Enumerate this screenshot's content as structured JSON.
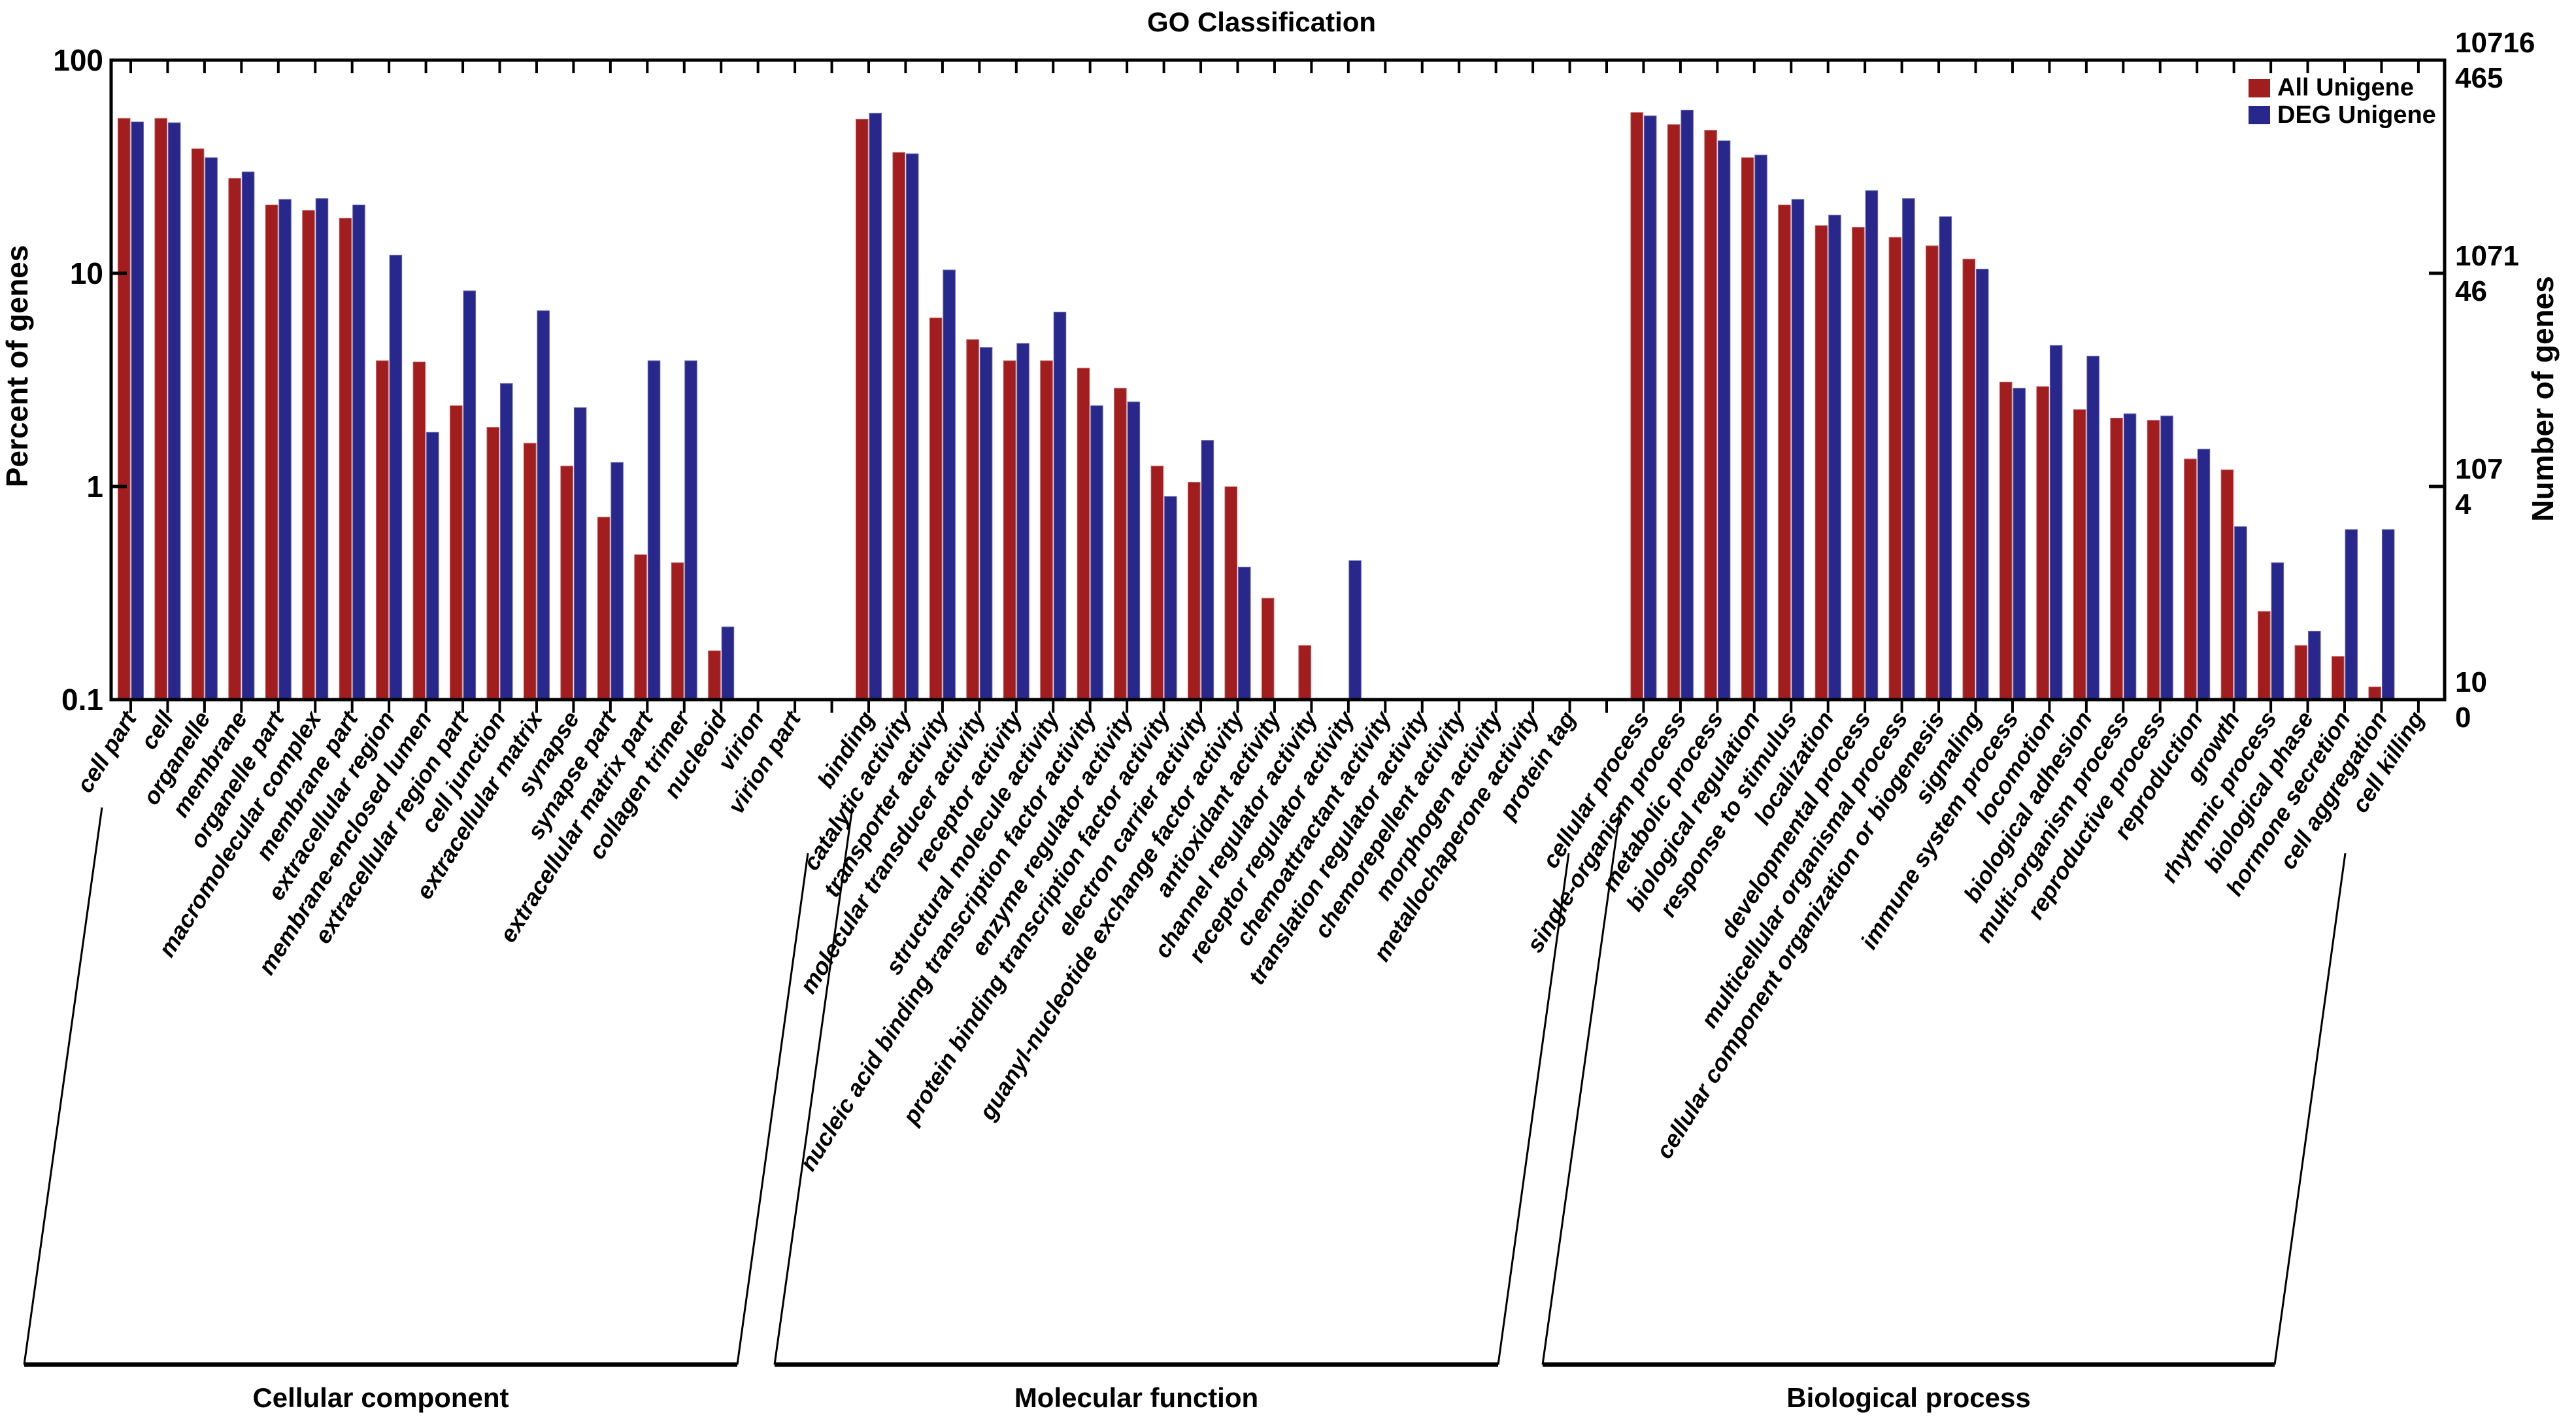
{
  "chart_data": {
    "type": "bar",
    "title": "GO Classification",
    "ylabel_left": "Percent of genes",
    "ylabel_right": "Number of genes",
    "yscale": "log",
    "ylim": [
      0.1,
      100
    ],
    "grid": false,
    "legend_position": "top-right",
    "legend": [
      "All Unigene",
      "DEG Unigene"
    ],
    "series_colors": {
      "all": "#a21d1d",
      "deg": "#28288c"
    },
    "left_tick_labels": [
      "100",
      "10",
      "1",
      "0.1"
    ],
    "left_tick_values": [
      100,
      10,
      1,
      0.1
    ],
    "right_tick_labels_all": [
      "10716",
      "1071",
      "107",
      "10"
    ],
    "right_tick_labels_deg": [
      "465",
      "46",
      "4",
      "0"
    ],
    "groups": [
      {
        "name": "Cellular component",
        "categories": [
          "cell part",
          "cell",
          "organelle",
          "membrane",
          "organelle part",
          "macromolecular complex",
          "membrane part",
          "extracellular region",
          "membrane-enclosed lumen",
          "extracellular region part",
          "cell junction",
          "extracellular matrix",
          "synapse",
          "synapse part",
          "extracellular matrix part",
          "collagen trimer",
          "nucleoid",
          "virion",
          "virion part"
        ],
        "series": [
          {
            "name": "All Unigene",
            "values": [
              53.5,
              53.5,
              38.5,
              28,
              21,
              19.8,
              18.2,
              3.9,
              3.85,
              2.4,
              1.9,
              1.6,
              1.25,
              0.72,
              0.48,
              0.44,
              0.17,
              0,
              0
            ]
          },
          {
            "name": "DEG Unigene",
            "values": [
              51.5,
              51,
              35,
              30,
              22.3,
              22.5,
              21,
              12.2,
              1.8,
              8.3,
              3.05,
              6.7,
              2.35,
              1.3,
              3.9,
              3.9,
              0.22,
              0,
              0
            ]
          }
        ]
      },
      {
        "name": "Molecular function",
        "categories": [
          "binding",
          "catalytic activity",
          "transporter activity",
          "molecular transducer activity",
          "receptor activity",
          "structural molecule activity",
          "nucleic acid binding transcription factor activity",
          "enzyme regulator activity",
          "protein binding transcription factor activity",
          "electron carrier activity",
          "guanyl-nucleotide exchange factor activity",
          "antioxidant activity",
          "channel regulator activity",
          "receptor regulator activity",
          "chemoattractant activity",
          "translation regulator activity",
          "chemorepellent activity",
          "morphogen activity",
          "metallochaperone activity",
          "protein tag"
        ],
        "series": [
          {
            "name": "All Unigene",
            "values": [
              53,
              37,
              6.2,
              4.9,
              3.9,
              3.9,
              3.6,
              2.9,
              1.25,
              1.05,
              1.0,
              0.3,
              0.18,
              0.1,
              0,
              0,
              0,
              0,
              0,
              0
            ]
          },
          {
            "name": "DEG Unigene",
            "values": [
              56.5,
              36.5,
              10.4,
              4.5,
              4.7,
              6.6,
              2.4,
              2.5,
              0.9,
              1.65,
              0.42,
              0,
              0,
              0.45,
              0,
              0,
              0,
              0,
              0,
              0
            ]
          }
        ]
      },
      {
        "name": "Biological process",
        "categories": [
          "cellular process",
          "single-organism process",
          "metabolic process",
          "biological regulation",
          "response to stimulus",
          "localization",
          "developmental process",
          "multicellular organismal process",
          "cellular component organization or biogenesis",
          "signaling",
          "immune system process",
          "locomotion",
          "biological adhesion",
          "multi-organism process",
          "reproductive process",
          "reproduction",
          "growth",
          "rhythmic process",
          "biological phase",
          "hormone secretion",
          "cell aggregation",
          "cell killing"
        ],
        "series": [
          {
            "name": "All Unigene",
            "values": [
              57,
              50,
              47,
              35,
              21,
              16.8,
              16.5,
              14.8,
              13.5,
              11.7,
              3.1,
              2.95,
              2.3,
              2.1,
              2.05,
              1.35,
              1.2,
              0.26,
              0.18,
              0.16,
              0.115,
              0
            ]
          },
          {
            "name": "DEG Unigene",
            "values": [
              55,
              58.5,
              42,
              36,
              22.3,
              18.8,
              24.5,
              22.5,
              18.5,
              10.5,
              2.9,
              4.6,
              4.1,
              2.2,
              2.15,
              1.5,
              0.65,
              0.44,
              0.21,
              0.63,
              0.63,
              0
            ]
          }
        ]
      }
    ]
  }
}
